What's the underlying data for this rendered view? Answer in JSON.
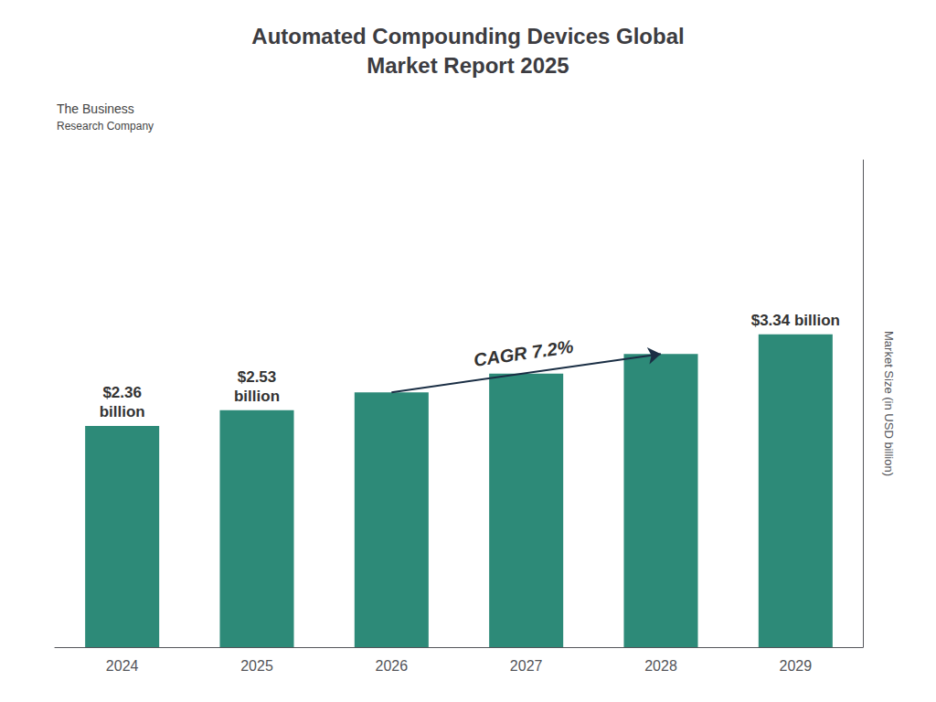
{
  "chart_data": {
    "type": "bar",
    "title": "Automated Compounding Devices Global\nMarket Report 2025",
    "categories": [
      "2024",
      "2025",
      "2026",
      "2027",
      "2028",
      "2029"
    ],
    "values": [
      2.36,
      2.53,
      2.72,
      2.92,
      3.13,
      3.34
    ],
    "value_labels": [
      "$2.36\nbillion",
      "$2.53\nbillion",
      null,
      null,
      null,
      "$3.34 billion"
    ],
    "color": "#2d8a78",
    "ylabel": "Market Size (in USD billion)",
    "ylim": [
      0,
      5.2
    ],
    "grid": false,
    "tick_labels": "x",
    "annotations": [
      {
        "text": "CAGR 7.2%",
        "arrow": [
          "2026",
          "2028"
        ]
      },
      {
        "text": "The Business"
      },
      {
        "text": "Research Company"
      }
    ]
  }
}
